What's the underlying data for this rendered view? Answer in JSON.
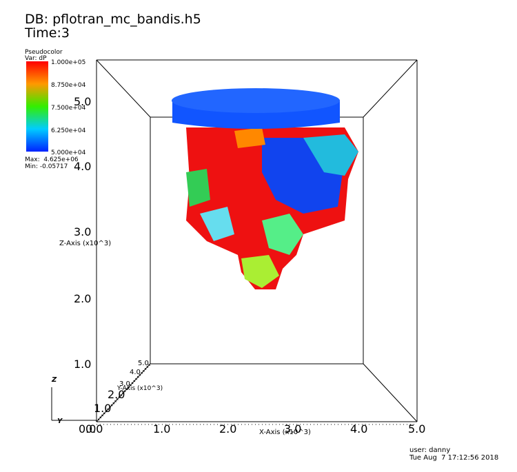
{
  "header": {
    "database": "DB: pflotran_mc_bandis.h5",
    "time": "Time:3"
  },
  "legend": {
    "plot": "Pseudocolor",
    "variable": "Var: dP",
    "labels": [
      "1.000e+05",
      "8.750e+04",
      "7.500e+04",
      "6.250e+04",
      "5.000e+04"
    ],
    "max": "Max:  4.625e+06",
    "min": "Min: -0.05717"
  },
  "z_axis": {
    "title": "Z-Axis (x10^3)",
    "ticks": [
      "5.0",
      "4.0",
      "3.0",
      "2.0",
      "1.0"
    ]
  },
  "x_axis": {
    "title": "X-Axis (x10^3)",
    "ticks": [
      "0.0",
      "1.0",
      "2.0",
      "3.0",
      "4.0",
      "5.0"
    ]
  },
  "y_axis": {
    "title": "Y-Axis (x10^3)",
    "ticks": [
      "0.0",
      "1.0",
      "2.0",
      "3.0",
      "4.0",
      "5.0"
    ]
  },
  "triad": {
    "z": "Z",
    "y": "Y"
  },
  "footer": {
    "user": "user: danny",
    "date": "Tue Aug  7 17:12:56 2018"
  }
}
